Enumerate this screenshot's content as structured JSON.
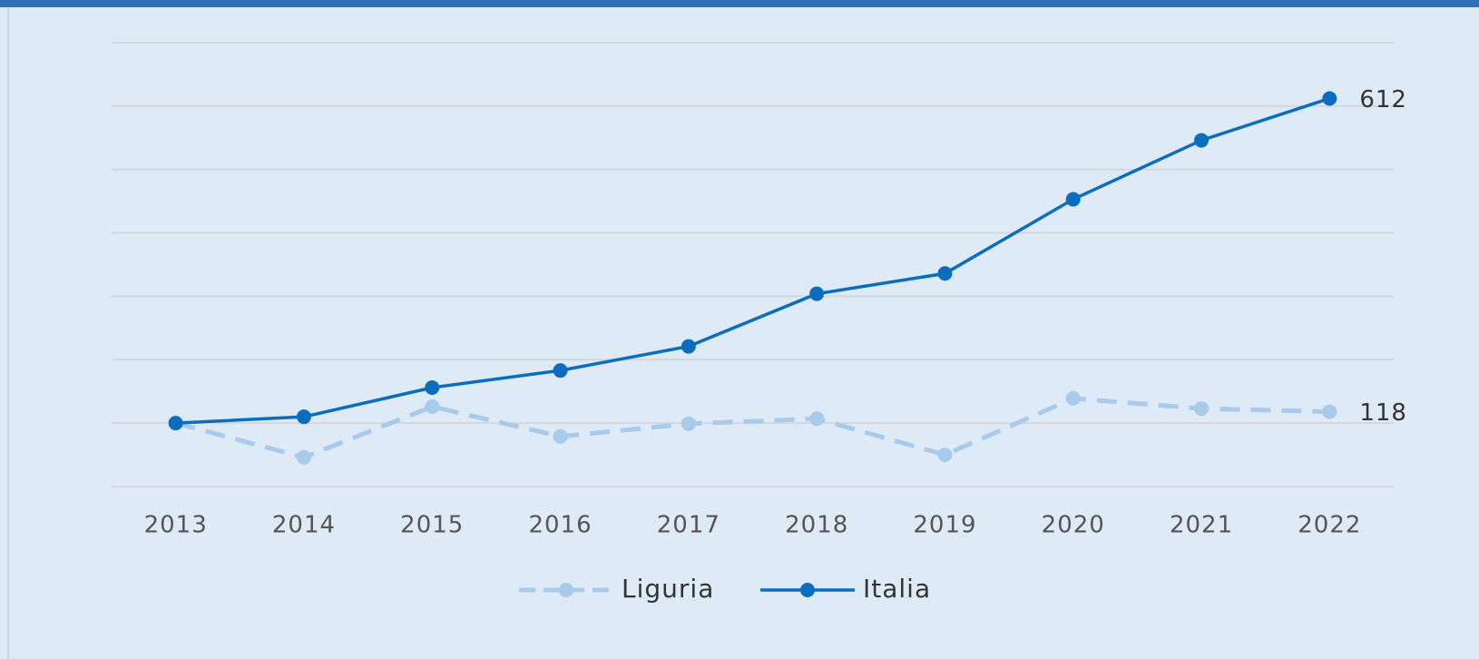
{
  "chart_data": {
    "type": "line",
    "categories": [
      "2013",
      "2014",
      "2015",
      "2016",
      "2017",
      "2018",
      "2019",
      "2020",
      "2021",
      "2022"
    ],
    "series": [
      {
        "name": "Liguria",
        "color": "#a8cbec",
        "dashed": true,
        "values": [
          100,
          46,
          126,
          79,
          99,
          107,
          50,
          139,
          123,
          118
        ]
      },
      {
        "name": "Italia",
        "color": "#0b6dbd",
        "dashed": false,
        "values": [
          100,
          110,
          156,
          183,
          221,
          304,
          336,
          453,
          546,
          612
        ]
      }
    ],
    "ylim": [
      0,
      700
    ],
    "yticks": [
      0,
      100,
      200,
      300,
      400,
      500,
      600,
      700
    ],
    "grid": true,
    "legend": "bottom"
  }
}
